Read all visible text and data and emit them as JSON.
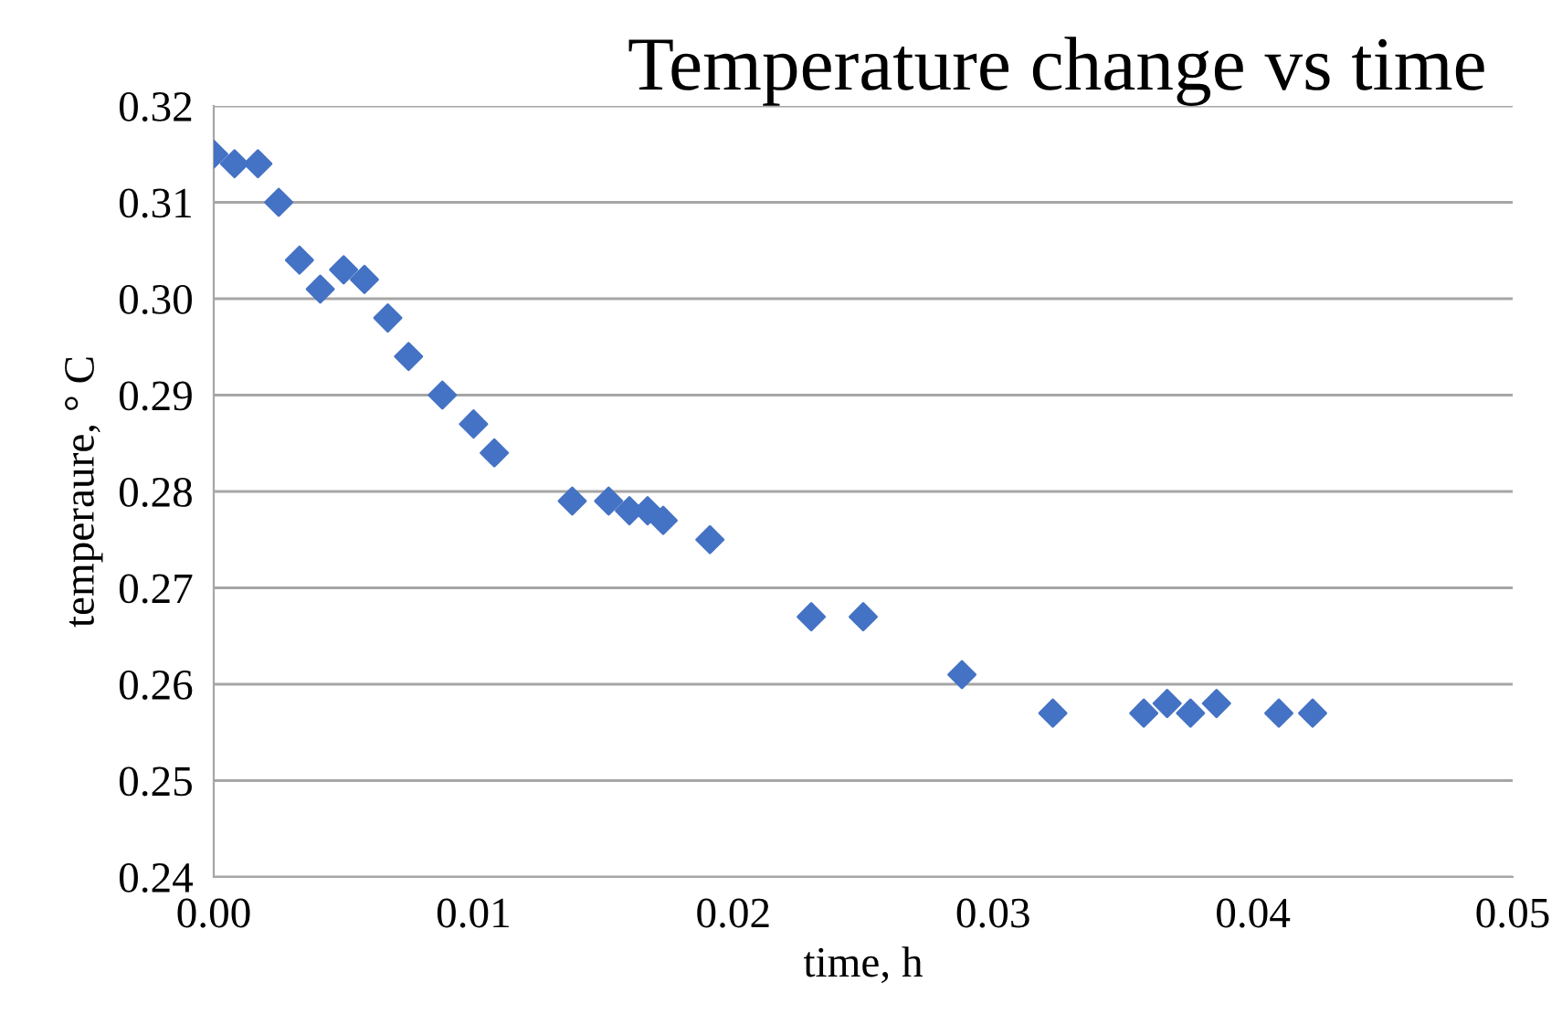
{
  "chart_data": {
    "type": "scatter",
    "title": "Temperature change vs time",
    "xlabel": "time, h",
    "ylabel": "temperaure, ° C",
    "x": [
      0.0,
      0.0008,
      0.0017,
      0.0025,
      0.0033,
      0.0041,
      0.005,
      0.0058,
      0.0067,
      0.0075,
      0.0088,
      0.01,
      0.0108,
      0.0138,
      0.0152,
      0.016,
      0.0167,
      0.0173,
      0.0191,
      0.023,
      0.025,
      0.0288,
      0.0323,
      0.0358,
      0.0367,
      0.0376,
      0.0386,
      0.041,
      0.0423
    ],
    "series": [
      {
        "color": "#4472c4",
        "values": [
          0.315,
          0.314,
          0.314,
          0.31,
          0.304,
          0.301,
          0.303,
          0.302,
          0.298,
          0.294,
          0.29,
          0.287,
          0.284,
          0.279,
          0.279,
          0.278,
          0.278,
          0.277,
          0.275,
          0.267,
          0.267,
          0.261,
          0.257,
          0.257,
          0.258,
          0.257,
          0.258,
          0.257,
          0.257
        ]
      }
    ],
    "marker": "diamond",
    "grid": "y",
    "xlim": [
      0,
      0.05
    ],
    "ylim": [
      0.24,
      0.32
    ],
    "xticks": [
      {
        "value": 0,
        "label": "0.00"
      },
      {
        "value": 0.01,
        "label": "0.01"
      },
      {
        "value": 0.02,
        "label": "0.02"
      },
      {
        "value": 0.03,
        "label": "0.03"
      },
      {
        "value": 0.04,
        "label": "0.04"
      },
      {
        "value": 0.05,
        "label": "0.05"
      }
    ],
    "yticks": [
      {
        "value": 0.24,
        "label": "0.24"
      },
      {
        "value": 0.25,
        "label": "0.25"
      },
      {
        "value": 0.26,
        "label": "0.26"
      },
      {
        "value": 0.27,
        "label": "0.27"
      },
      {
        "value": 0.28,
        "label": "0.28"
      },
      {
        "value": 0.29,
        "label": "0.29"
      },
      {
        "value": 0.3,
        "label": "0.30"
      },
      {
        "value": 0.31,
        "label": "0.31"
      },
      {
        "value": 0.32,
        "label": "0.32"
      }
    ]
  }
}
